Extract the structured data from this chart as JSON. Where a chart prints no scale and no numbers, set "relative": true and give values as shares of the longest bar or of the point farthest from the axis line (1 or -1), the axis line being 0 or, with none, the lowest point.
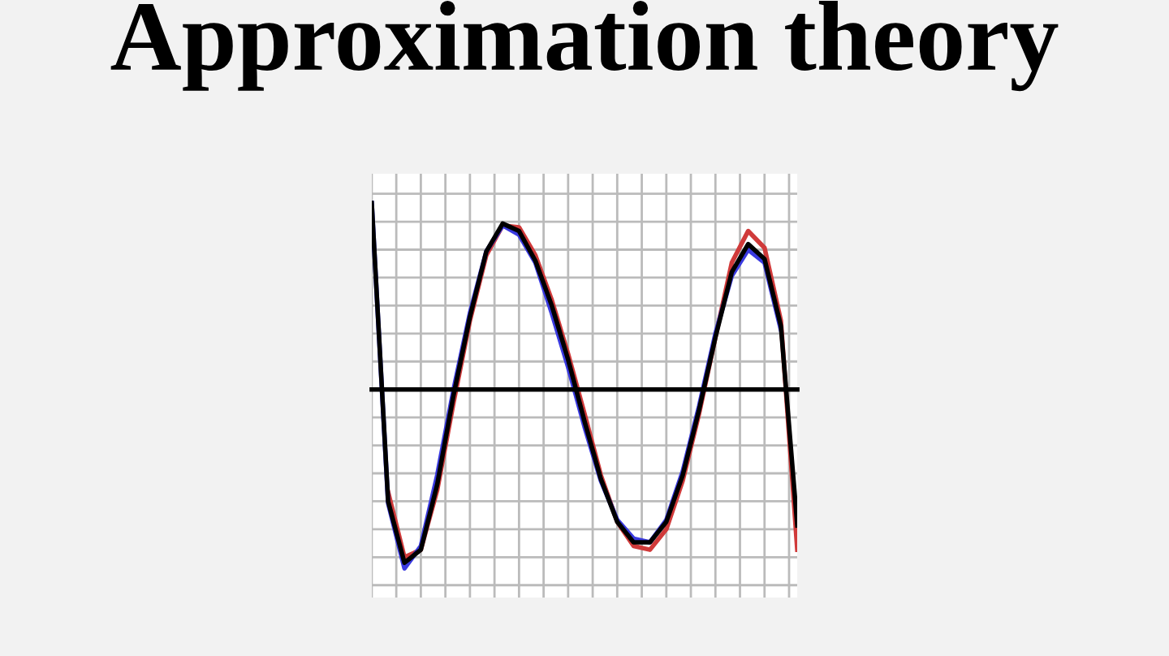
{
  "chart_data": {
    "type": "line",
    "title": "Approximation theory",
    "relative": true,
    "grid": true,
    "line_style": "solid",
    "categories": [
      null,
      null,
      null,
      null,
      null,
      null,
      null,
      null,
      null,
      null,
      null,
      null,
      null,
      null,
      null,
      null,
      null,
      null,
      null,
      null,
      null,
      null,
      null,
      null,
      null,
      null,
      null
    ],
    "series": [
      {
        "color": "#d03a3a",
        "values": [
          null,
          -0.55,
          -0.9,
          -0.86,
          -0.54,
          -0.07,
          0.37,
          0.72,
          0.88,
          0.87,
          0.72,
          0.48,
          0.19,
          -0.13,
          -0.46,
          -0.71,
          -0.84,
          -0.86,
          -0.75,
          -0.49,
          -0.13,
          0.28,
          0.68,
          0.85,
          0.76,
          0.37,
          -0.86
        ]
      },
      {
        "color": "#3a3ae0",
        "values": [
          1.0,
          -0.61,
          -0.96,
          -0.84,
          -0.46,
          0,
          0.41,
          0.74,
          0.88,
          0.83,
          0.68,
          0.41,
          0.12,
          -0.2,
          -0.49,
          -0.7,
          -0.8,
          -0.82,
          -0.7,
          -0.44,
          -0.09,
          0.3,
          0.61,
          0.75,
          0.68,
          0.32,
          null
        ]
      },
      {
        "color": "#000000",
        "values": [
          1.0,
          -0.6,
          -0.93,
          -0.86,
          -0.51,
          -0.03,
          0.39,
          0.74,
          0.89,
          0.85,
          0.69,
          0.45,
          0.16,
          -0.17,
          -0.48,
          -0.71,
          -0.82,
          -0.82,
          -0.71,
          -0.46,
          -0.11,
          0.28,
          0.63,
          0.78,
          0.7,
          0.34,
          -0.73
        ]
      }
    ]
  }
}
